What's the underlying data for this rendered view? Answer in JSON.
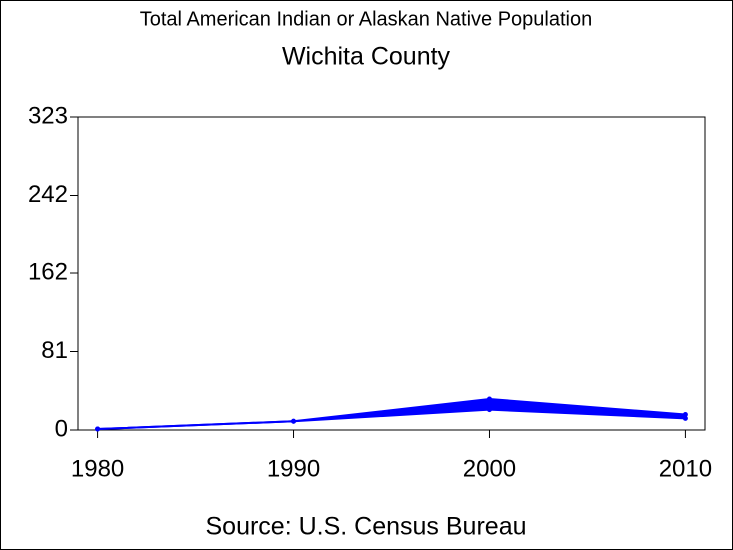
{
  "chart_data": {
    "type": "line",
    "title": "Total American Indian or Alaskan Native Population",
    "subtitle": "Wichita County",
    "source": "Source: U.S. Census Bureau",
    "x": [
      1980,
      1990,
      2000,
      2010
    ],
    "series": [
      {
        "color": "#0000ff",
        "values": [
          1,
          9,
          21,
          12
        ]
      },
      {
        "color": "#0000ff",
        "values": [
          1,
          9,
          32,
          16
        ]
      }
    ],
    "xlim": [
      1979,
      2011
    ],
    "xticks": [
      1980,
      1990,
      2000,
      2010
    ],
    "ylim": [
      0,
      323
    ],
    "yticks": [
      0,
      81,
      162,
      242,
      323
    ]
  }
}
